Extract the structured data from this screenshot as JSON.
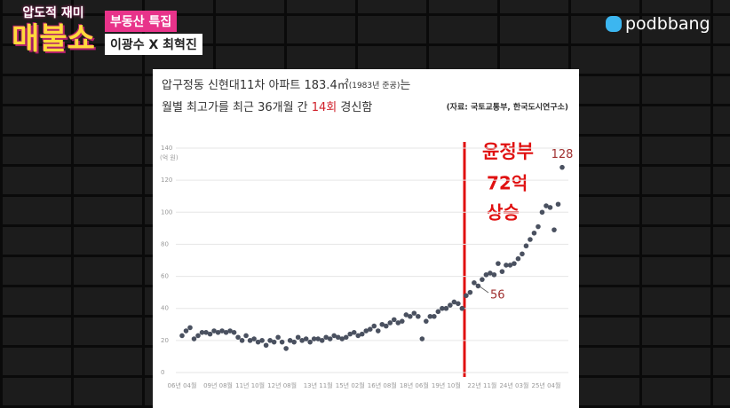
{
  "header": {
    "logo_top": "압도적 재미",
    "logo_main": "매불쇼",
    "badge": "부동산 특집",
    "guests": "이광수 X 최혁진",
    "brand": "podbbang"
  },
  "chart_data": {
    "type": "scatter",
    "title_parts": [
      "압구정동 신현대11차 아파트 183.4㎡",
      "(1983년 준공)",
      "는"
    ],
    "subtitle_parts": [
      "월별 최고가를 최근 36개월 간 ",
      "14회",
      " 경신함"
    ],
    "source": "(자료: 국토교통부, 한국도시연구소)",
    "y_label": "(억 원)",
    "annotations": [
      "윤정부",
      "72억",
      "상승"
    ],
    "categories": [
      "06년 04월",
      null,
      null,
      null,
      null,
      null,
      null,
      null,
      null,
      "09년 08월",
      null,
      null,
      null,
      null,
      null,
      null,
      null,
      "11년 10월",
      null,
      null,
      null,
      null,
      null,
      null,
      null,
      "12년 08월",
      null,
      null,
      null,
      null,
      null,
      null,
      null,
      null,
      "13년 11월",
      null,
      null,
      null,
      null,
      null,
      null,
      null,
      "15년 02월",
      null,
      null,
      null,
      null,
      null,
      null,
      null,
      "16년 08월",
      null,
      null,
      null,
      null,
      null,
      null,
      null,
      "18년 06월",
      null,
      null,
      null,
      null,
      null,
      null,
      null,
      "19년 10월",
      null,
      null,
      null,
      null,
      null,
      null,
      null,
      null,
      "22년 11월",
      null,
      null,
      null,
      null,
      null,
      null,
      null,
      "24년 03월",
      null,
      null,
      null,
      null,
      null,
      null,
      null,
      "25년 04월",
      null,
      null,
      null,
      null
    ],
    "values": [
      23,
      26,
      28,
      21,
      23,
      25,
      25,
      24,
      26,
      25,
      26,
      25,
      26,
      25,
      22,
      20,
      23,
      20,
      21,
      19,
      20,
      17,
      20,
      19,
      22,
      19,
      15,
      20,
      19,
      22,
      20,
      21,
      19,
      21,
      21,
      20,
      22,
      21,
      23,
      22,
      21,
      22,
      24,
      25,
      23,
      24,
      26,
      27,
      29,
      26,
      30,
      29,
      31,
      33,
      31,
      32,
      36,
      35,
      37,
      35,
      21,
      32,
      35,
      35,
      38,
      40,
      40,
      42,
      44,
      43,
      40,
      48,
      50,
      56,
      54,
      58,
      61,
      62,
      61,
      68,
      63,
      67,
      67,
      68,
      71,
      74,
      79,
      83,
      87,
      91,
      100,
      104,
      103,
      89,
      105,
      128
    ],
    "color": "#4a5160",
    "ylim": [
      0,
      140
    ],
    "yticks": [
      0,
      20,
      40,
      60,
      80,
      100,
      120,
      140
    ],
    "grid": true
  }
}
